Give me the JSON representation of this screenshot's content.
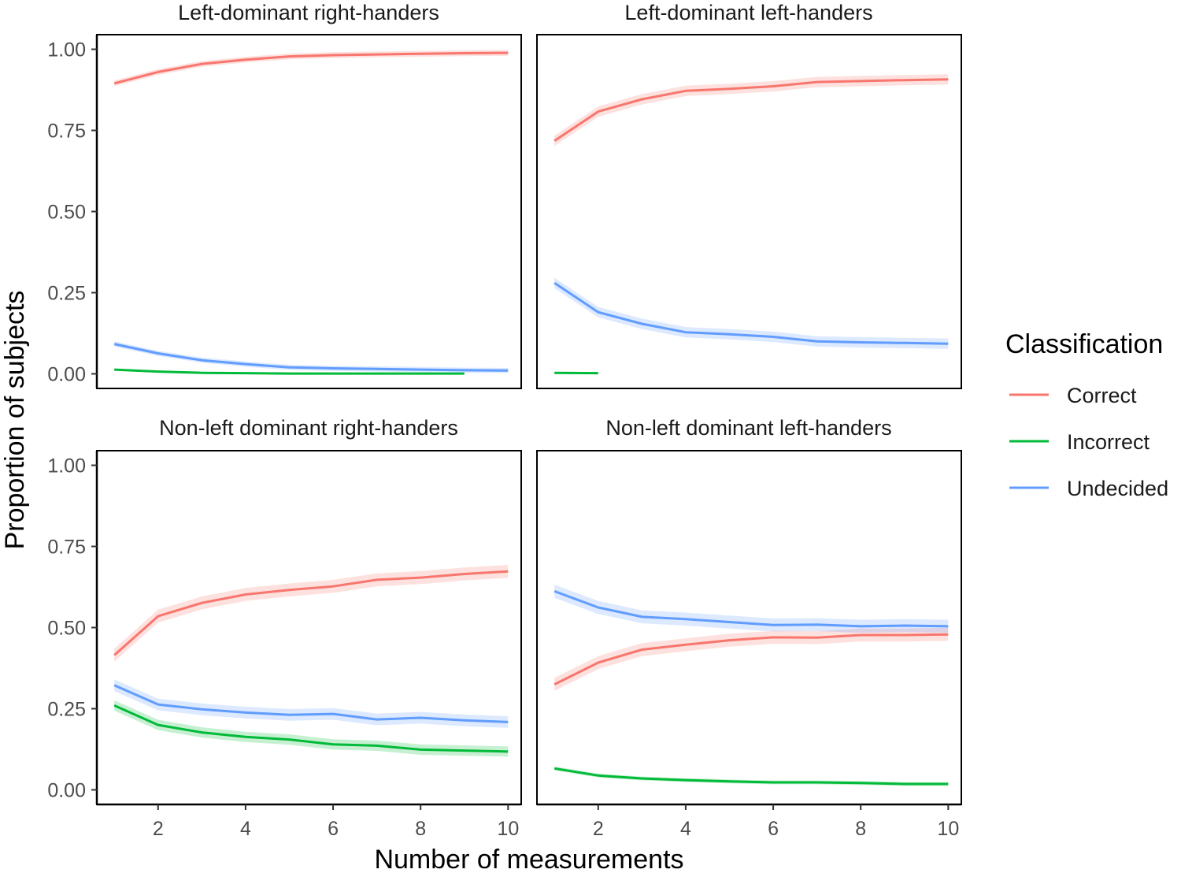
{
  "chart_data": {
    "type": "line",
    "ylabel": "Proportion of subjects",
    "xlabel": "Number of measurements",
    "xlim": [
      0.6,
      10.3
    ],
    "ylim": [
      -0.045,
      1.045
    ],
    "x_ticks": [
      2,
      4,
      6,
      8,
      10
    ],
    "x_tick_labels": [
      "2",
      "4",
      "6",
      "8",
      "10"
    ],
    "y_ticks": [
      0,
      0.25,
      0.5,
      0.75,
      1.0
    ],
    "y_tick_labels": [
      "0.00",
      "0.25",
      "0.50",
      "0.75",
      "1.00"
    ],
    "grid": false,
    "confidence_bands": true,
    "legend": {
      "title": "Classification",
      "placement": "right",
      "entries": [
        {
          "label": "Correct",
          "color": "#F8766D"
        },
        {
          "label": "Incorrect",
          "color": "#00BA38"
        },
        {
          "label": "Undecided",
          "color": "#619CFF"
        }
      ]
    },
    "panels": [
      {
        "title": "Left-dominant right-handers",
        "series": [
          {
            "name": "Correct",
            "x": [
              1,
              2,
              3,
              4,
              5,
              6,
              7,
              8,
              9,
              10
            ],
            "values": [
              0.895,
              0.93,
              0.955,
              0.968,
              0.978,
              0.982,
              0.984,
              0.986,
              0.988,
              0.989
            ],
            "band": 0.009
          },
          {
            "name": "Incorrect",
            "x": [
              1,
              2,
              3,
              4,
              5,
              6,
              7,
              8,
              9
            ],
            "values": [
              0.013,
              0.007,
              0.003,
              0.002,
              0.001,
              0.001,
              0.001,
              0.001,
              0.001
            ],
            "band": 0.003
          },
          {
            "name": "Undecided",
            "x": [
              1,
              2,
              3,
              4,
              5,
              6,
              7,
              8,
              9,
              10
            ],
            "values": [
              0.092,
              0.063,
              0.042,
              0.03,
              0.02,
              0.017,
              0.015,
              0.013,
              0.011,
              0.01
            ],
            "band": 0.008
          }
        ]
      },
      {
        "title": "Left-dominant left-handers",
        "series": [
          {
            "name": "Correct",
            "x": [
              1,
              2,
              3,
              4,
              5,
              6,
              7,
              8,
              9,
              10
            ],
            "values": [
              0.718,
              0.808,
              0.846,
              0.872,
              0.878,
              0.886,
              0.899,
              0.902,
              0.905,
              0.907
            ],
            "band": 0.016
          },
          {
            "name": "Incorrect",
            "x": [
              1,
              2
            ],
            "values": [
              0.003,
              0.002
            ],
            "band": 0.002
          },
          {
            "name": "Undecided",
            "x": [
              1,
              2,
              3,
              4,
              5,
              6,
              7,
              8,
              9,
              10
            ],
            "values": [
              0.28,
              0.19,
              0.154,
              0.128,
              0.122,
              0.114,
              0.1,
              0.097,
              0.095,
              0.093
            ],
            "band": 0.016
          }
        ]
      },
      {
        "title": "Non-left dominant right-handers",
        "series": [
          {
            "name": "Correct",
            "x": [
              1,
              2,
              3,
              4,
              5,
              6,
              7,
              8,
              9,
              10
            ],
            "values": [
              0.415,
              0.535,
              0.576,
              0.602,
              0.616,
              0.627,
              0.647,
              0.654,
              0.665,
              0.673
            ],
            "band": 0.02
          },
          {
            "name": "Incorrect",
            "x": [
              1,
              2,
              3,
              4,
              5,
              6,
              7,
              8,
              9,
              10
            ],
            "values": [
              0.26,
              0.2,
              0.177,
              0.163,
              0.155,
              0.14,
              0.136,
              0.124,
              0.121,
              0.118
            ],
            "band": 0.016
          },
          {
            "name": "Undecided",
            "x": [
              1,
              2,
              3,
              4,
              5,
              6,
              7,
              8,
              9,
              10
            ],
            "values": [
              0.322,
              0.263,
              0.248,
              0.238,
              0.231,
              0.234,
              0.217,
              0.222,
              0.214,
              0.209
            ],
            "band": 0.018
          }
        ]
      },
      {
        "title": "Non-left dominant left-handers",
        "series": [
          {
            "name": "Correct",
            "x": [
              1,
              2,
              3,
              4,
              5,
              6,
              7,
              8,
              9,
              10
            ],
            "values": [
              0.325,
              0.392,
              0.432,
              0.447,
              0.461,
              0.47,
              0.469,
              0.477,
              0.477,
              0.479
            ],
            "band": 0.02
          },
          {
            "name": "Incorrect",
            "x": [
              1,
              2,
              3,
              4,
              5,
              6,
              7,
              8,
              9,
              10
            ],
            "values": [
              0.066,
              0.044,
              0.035,
              0.03,
              0.026,
              0.023,
              0.023,
              0.021,
              0.018,
              0.018
            ],
            "band": 0.006
          },
          {
            "name": "Undecided",
            "x": [
              1,
              2,
              3,
              4,
              5,
              6,
              7,
              8,
              9,
              10
            ],
            "values": [
              0.612,
              0.562,
              0.533,
              0.526,
              0.517,
              0.508,
              0.509,
              0.504,
              0.506,
              0.504
            ],
            "band": 0.02
          }
        ]
      }
    ]
  }
}
